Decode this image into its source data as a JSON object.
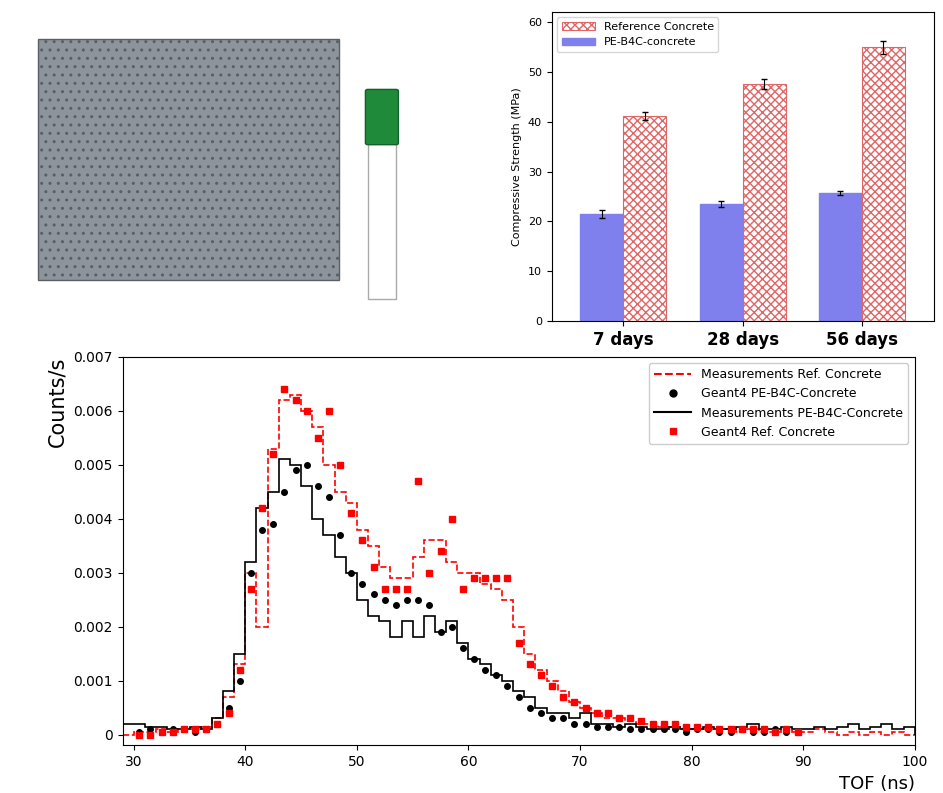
{
  "chart_data": [
    {
      "type": "bar",
      "ylabel": "Compressive Strength (MPa)",
      "categories": [
        "7 days",
        "28 days",
        "56 days"
      ],
      "series": [
        {
          "name": "PE-B4C-concrete",
          "color": "#7f80ee",
          "values": [
            21.4,
            23.5,
            25.6
          ],
          "errors": [
            0.8,
            0.6,
            0.4
          ]
        },
        {
          "name": "Reference Concrete",
          "color": "#e06666",
          "values": [
            41.1,
            47.6,
            54.9
          ],
          "errors": [
            0.8,
            1.0,
            1.3
          ]
        }
      ],
      "legend_order": [
        "Reference Concrete",
        "PE-B4C-concrete"
      ],
      "ylim": [
        0,
        62
      ],
      "yticks": [
        0,
        10,
        20,
        30,
        40,
        50,
        60
      ],
      "legend": "upper left"
    },
    {
      "type": "line",
      "xlabel": "TOF (ns)",
      "ylabel": "Counts/s",
      "xlim": [
        29,
        100
      ],
      "xticks": [
        30,
        40,
        50,
        60,
        70,
        80,
        90,
        100
      ],
      "ylim": [
        -0.0002,
        0.007
      ],
      "yticks": [
        0,
        0.001,
        0.002,
        0.003,
        0.004,
        0.005,
        0.006,
        0.007
      ],
      "legend": "upper right",
      "series": [
        {
          "name": "Measurements Ref. Concrete",
          "type": "step",
          "color": "#ff0000",
          "line_style": "dashed",
          "bins": [
            29,
            30,
            31,
            32,
            33,
            34,
            35,
            36,
            37,
            38,
            39,
            40,
            41,
            42,
            43,
            44,
            45,
            46,
            47,
            48,
            49,
            50,
            51,
            52,
            53,
            54,
            55,
            56,
            57,
            58,
            59,
            60,
            61,
            62,
            63,
            64,
            65,
            66,
            67,
            68,
            69,
            70,
            71,
            72,
            73,
            74,
            75,
            76,
            77,
            78,
            79,
            80,
            81,
            82,
            83,
            84,
            85,
            86,
            87,
            88,
            89,
            90,
            91,
            92,
            93,
            94,
            95,
            96,
            97,
            98,
            99,
            100
          ],
          "counts": [
            0.0,
            5e-05,
            5e-05,
            0.0001,
            5e-05,
            0.0001,
            0.0001,
            0.00015,
            0.0003,
            0.0007,
            0.0013,
            0.003,
            0.002,
            0.0053,
            0.0062,
            0.0063,
            0.006,
            0.0057,
            0.005,
            0.0045,
            0.0043,
            0.0038,
            0.0035,
            0.0031,
            0.0029,
            0.0029,
            0.0033,
            0.0036,
            0.0036,
            0.0032,
            0.003,
            0.003,
            0.0028,
            0.0027,
            0.0025,
            0.002,
            0.0015,
            0.0012,
            0.001,
            0.0008,
            0.0006,
            0.0005,
            0.0004,
            0.0003,
            0.0003,
            0.00025,
            0.0002,
            0.0002,
            0.00015,
            0.00015,
            0.0001,
            0.0001,
            0.0001,
            0.0001,
            0.0001,
            5e-05,
            0.0001,
            5e-05,
            5e-05,
            0.0001,
            5e-05,
            5e-05,
            0.0001,
            5e-05,
            0.0,
            5e-05,
            0.0,
            5e-05,
            0.0,
            5e-05,
            0.0
          ]
        },
        {
          "name": "Geant4 PE-B4C-Concrete",
          "type": "scatter",
          "color": "#000000",
          "marker": "circle",
          "x": [
            30.5,
            31.5,
            32.5,
            33.5,
            34.5,
            35.5,
            36.5,
            37.5,
            38.5,
            39.5,
            40.5,
            41.5,
            42.5,
            43.5,
            44.5,
            45.5,
            46.5,
            47.5,
            48.5,
            49.5,
            50.5,
            51.5,
            52.5,
            53.5,
            54.5,
            55.5,
            56.5,
            57.5,
            58.5,
            59.5,
            60.5,
            61.5,
            62.5,
            63.5,
            64.5,
            65.5,
            66.5,
            67.5,
            68.5,
            69.5,
            70.5,
            71.5,
            72.5,
            73.5,
            74.5,
            75.5,
            76.5,
            77.5,
            78.5,
            79.5,
            80.5,
            81.5,
            82.5,
            83.5,
            84.5,
            85.5,
            86.5,
            87.5,
            88.5,
            89.5
          ],
          "values": [
            5e-05,
            0.0001,
            5e-05,
            0.0001,
            0.0001,
            5e-05,
            0.0001,
            0.0002,
            0.0005,
            0.001,
            0.003,
            0.0038,
            0.0039,
            0.0045,
            0.0049,
            0.005,
            0.0046,
            0.0044,
            0.0037,
            0.003,
            0.0028,
            0.0026,
            0.0025,
            0.0024,
            0.0025,
            0.0025,
            0.0024,
            0.0019,
            0.002,
            0.0016,
            0.0014,
            0.0012,
            0.0011,
            0.0009,
            0.0007,
            0.0005,
            0.0004,
            0.0003,
            0.0003,
            0.0002,
            0.0002,
            0.00015,
            0.00015,
            0.00015,
            0.0001,
            0.0001,
            0.0001,
            0.0001,
            0.0001,
            5e-05,
            0.0001,
            0.0001,
            5e-05,
            5e-05,
            0.0001,
            5e-05,
            5e-05,
            0.0001,
            5e-05,
            5e-05
          ]
        },
        {
          "name": "Measurements PE-B4C-Concrete",
          "type": "step",
          "color": "#000000",
          "line_style": "solid",
          "bins": [
            29,
            30,
            31,
            32,
            33,
            34,
            35,
            36,
            37,
            38,
            39,
            40,
            41,
            42,
            43,
            44,
            45,
            46,
            47,
            48,
            49,
            50,
            51,
            52,
            53,
            54,
            55,
            56,
            57,
            58,
            59,
            60,
            61,
            62,
            63,
            64,
            65,
            66,
            67,
            68,
            69,
            70,
            71,
            72,
            73,
            74,
            75,
            76,
            77,
            78,
            79,
            80,
            81,
            82,
            83,
            84,
            85,
            86,
            87,
            88,
            89,
            90,
            91,
            92,
            93,
            94,
            95,
            96,
            97,
            98,
            99,
            100
          ],
          "counts": [
            0.0002,
            0.0002,
            0.00015,
            0.00015,
            0.0001,
            0.0001,
            0.00015,
            0.0001,
            0.0003,
            0.0008,
            0.0015,
            0.0032,
            0.0042,
            0.0045,
            0.0051,
            0.005,
            0.0046,
            0.004,
            0.0037,
            0.0033,
            0.003,
            0.0025,
            0.0022,
            0.0021,
            0.0018,
            0.0021,
            0.0018,
            0.0022,
            0.0019,
            0.0021,
            0.0017,
            0.0014,
            0.0013,
            0.0011,
            0.001,
            0.0008,
            0.0007,
            0.0005,
            0.0004,
            0.0004,
            0.0003,
            0.0004,
            0.0002,
            0.0002,
            0.00015,
            0.0002,
            0.00015,
            0.0001,
            0.0001,
            0.00015,
            0.0001,
            0.0001,
            0.00015,
            0.0001,
            0.0001,
            0.00015,
            0.0002,
            0.0001,
            0.0001,
            0.00015,
            0.0001,
            0.0001,
            0.00015,
            0.0001,
            0.00015,
            0.0002,
            0.0001,
            0.00015,
            0.0002,
            0.0001,
            0.00015
          ]
        },
        {
          "name": "Geant4 Ref. Concrete",
          "type": "scatter",
          "color": "#ff0000",
          "marker": "square",
          "x": [
            30.5,
            31.5,
            32.5,
            33.5,
            34.5,
            35.5,
            36.5,
            37.5,
            38.5,
            39.5,
            40.5,
            41.5,
            42.5,
            43.5,
            44.5,
            45.5,
            46.5,
            47.5,
            48.5,
            49.5,
            50.5,
            51.5,
            52.5,
            53.5,
            54.5,
            55.5,
            56.5,
            57.5,
            58.5,
            59.5,
            60.5,
            61.5,
            62.5,
            63.5,
            64.5,
            65.5,
            66.5,
            67.5,
            68.5,
            69.5,
            70.5,
            71.5,
            72.5,
            73.5,
            74.5,
            75.5,
            76.5,
            77.5,
            78.5,
            79.5,
            80.5,
            81.5,
            82.5,
            83.5,
            84.5,
            85.5,
            86.5,
            87.5,
            88.5,
            89.5
          ],
          "values": [
            0.0,
            0.0,
            5e-05,
            5e-05,
            0.0001,
            0.0001,
            0.0001,
            0.0002,
            0.0004,
            0.0012,
            0.0027,
            0.0042,
            0.0052,
            0.0064,
            0.0062,
            0.006,
            0.0055,
            0.006,
            0.005,
            0.0041,
            0.0036,
            0.0031,
            0.0027,
            0.0027,
            0.0027,
            0.0047,
            0.003,
            0.0034,
            0.004,
            0.0027,
            0.0029,
            0.0029,
            0.0029,
            0.0029,
            0.0017,
            0.0013,
            0.0011,
            0.0009,
            0.0007,
            0.0006,
            0.0005,
            0.0004,
            0.0004,
            0.0003,
            0.0003,
            0.00025,
            0.0002,
            0.0002,
            0.0002,
            0.00015,
            0.00015,
            0.00015,
            0.0001,
            0.0001,
            0.0001,
            0.0001,
            0.0001,
            5e-05,
            0.0001,
            5e-05
          ]
        }
      ]
    }
  ]
}
